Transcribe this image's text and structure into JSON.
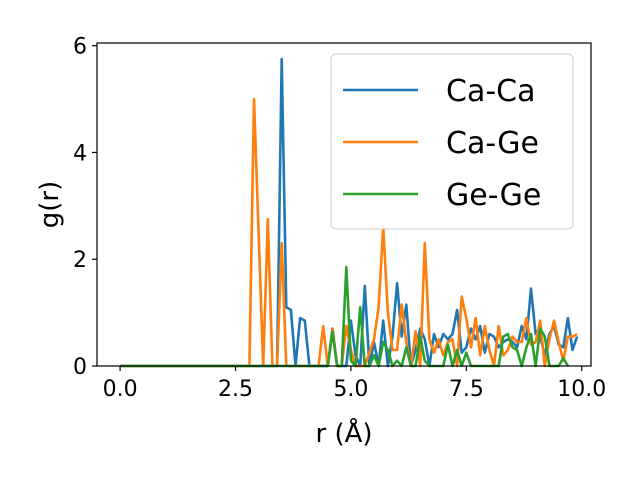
{
  "chart_data": {
    "type": "line",
    "xlabel": "r (Å)",
    "ylabel": "g(r)",
    "xlim": [
      -0.5,
      10.2
    ],
    "ylim": [
      0,
      6.05
    ],
    "xticks": [
      0.0,
      2.5,
      5.0,
      7.5,
      10.0
    ],
    "xtick_labels": [
      "0.0",
      "2.5",
      "5.0",
      "7.5",
      "10.0"
    ],
    "yticks": [
      0,
      2,
      4,
      6
    ],
    "ytick_labels": [
      "0",
      "2",
      "4",
      "6"
    ],
    "grid": false,
    "legend_position": "top-right",
    "series": [
      {
        "name": "Ca-Ca",
        "color": "#1f77b4",
        "points": [
          [
            0.0,
            0
          ],
          [
            3.3,
            0
          ],
          [
            3.4,
            0
          ],
          [
            3.5,
            5.75
          ],
          [
            3.6,
            1.1
          ],
          [
            3.7,
            1.05
          ],
          [
            3.8,
            0
          ],
          [
            3.9,
            0.9
          ],
          [
            4.0,
            0.85
          ],
          [
            4.1,
            0
          ],
          [
            4.3,
            0
          ],
          [
            4.5,
            0
          ],
          [
            4.6,
            0.7
          ],
          [
            4.7,
            0
          ],
          [
            4.9,
            0
          ],
          [
            5.0,
            0.85
          ],
          [
            5.1,
            0.2
          ],
          [
            5.2,
            0
          ],
          [
            5.3,
            1.5
          ],
          [
            5.4,
            0
          ],
          [
            5.5,
            0.45
          ],
          [
            5.6,
            0
          ],
          [
            5.7,
            0.85
          ],
          [
            5.8,
            0
          ],
          [
            5.9,
            0.55
          ],
          [
            6.0,
            1.55
          ],
          [
            6.1,
            0.55
          ],
          [
            6.2,
            1.15
          ],
          [
            6.3,
            0
          ],
          [
            6.4,
            0.3
          ],
          [
            6.5,
            0.7
          ],
          [
            6.6,
            0.5
          ],
          [
            6.7,
            0
          ],
          [
            6.8,
            0.6
          ],
          [
            6.9,
            0.35
          ],
          [
            7.0,
            0.6
          ],
          [
            7.1,
            0.5
          ],
          [
            7.2,
            0.6
          ],
          [
            7.3,
            1.05
          ],
          [
            7.4,
            0.25
          ],
          [
            7.5,
            0.35
          ],
          [
            7.6,
            0.7
          ],
          [
            7.7,
            0.5
          ],
          [
            7.8,
            0.75
          ],
          [
            7.9,
            0.25
          ],
          [
            8.0,
            0.6
          ],
          [
            8.1,
            0.55
          ],
          [
            8.2,
            0.35
          ],
          [
            8.3,
            0.45
          ],
          [
            8.4,
            0.5
          ],
          [
            8.5,
            0.45
          ],
          [
            8.6,
            0.35
          ],
          [
            8.7,
            0.75
          ],
          [
            8.8,
            0.5
          ],
          [
            8.9,
            1.45
          ],
          [
            9.0,
            0.6
          ],
          [
            9.1,
            0.55
          ],
          [
            9.2,
            0.2
          ],
          [
            9.3,
            0.6
          ],
          [
            9.4,
            0.75
          ],
          [
            9.5,
            0.4
          ],
          [
            9.6,
            0.35
          ],
          [
            9.7,
            0.9
          ],
          [
            9.8,
            0.3
          ],
          [
            9.9,
            0.55
          ]
        ]
      },
      {
        "name": "Ca-Ge",
        "color": "#ff7f0e",
        "points": [
          [
            0.0,
            0
          ],
          [
            2.8,
            0
          ],
          [
            2.9,
            5.0
          ],
          [
            3.0,
            2.5
          ],
          [
            3.1,
            0
          ],
          [
            3.2,
            2.75
          ],
          [
            3.3,
            0
          ],
          [
            3.4,
            0
          ],
          [
            3.5,
            2.3
          ],
          [
            3.6,
            0
          ],
          [
            4.3,
            0
          ],
          [
            4.4,
            0.75
          ],
          [
            4.5,
            0
          ],
          [
            4.6,
            0.7
          ],
          [
            4.7,
            0
          ],
          [
            4.8,
            0
          ],
          [
            4.9,
            0.75
          ],
          [
            5.0,
            0.3
          ],
          [
            5.1,
            0
          ],
          [
            5.2,
            0
          ],
          [
            5.3,
            0
          ],
          [
            5.4,
            0.25
          ],
          [
            5.5,
            0.5
          ],
          [
            5.6,
            1.1
          ],
          [
            5.7,
            2.6
          ],
          [
            5.8,
            1.0
          ],
          [
            5.9,
            0.3
          ],
          [
            6.0,
            0.3
          ],
          [
            6.1,
            1.15
          ],
          [
            6.2,
            0.45
          ],
          [
            6.3,
            0
          ],
          [
            6.4,
            0.65
          ],
          [
            6.5,
            0
          ],
          [
            6.6,
            2.3
          ],
          [
            6.7,
            0.5
          ],
          [
            6.8,
            0.25
          ],
          [
            6.9,
            0.5
          ],
          [
            7.0,
            0.2
          ],
          [
            7.1,
            0.45
          ],
          [
            7.2,
            0.5
          ],
          [
            7.3,
            0
          ],
          [
            7.4,
            1.3
          ],
          [
            7.5,
            0.9
          ],
          [
            7.6,
            0.35
          ],
          [
            7.7,
            0.9
          ],
          [
            7.8,
            0.2
          ],
          [
            7.9,
            0.75
          ],
          [
            8.0,
            0.3
          ],
          [
            8.1,
            0
          ],
          [
            8.2,
            0.75
          ],
          [
            8.3,
            0.2
          ],
          [
            8.4,
            0.3
          ],
          [
            8.5,
            0.55
          ],
          [
            8.6,
            0.45
          ],
          [
            8.7,
            0.45
          ],
          [
            8.8,
            0.9
          ],
          [
            8.9,
            0.4
          ],
          [
            9.0,
            0.45
          ],
          [
            9.1,
            0.85
          ],
          [
            9.2,
            0
          ],
          [
            9.3,
            0.5
          ],
          [
            9.4,
            0.85
          ],
          [
            9.5,
            0.45
          ],
          [
            9.6,
            0.1
          ],
          [
            9.7,
            0.55
          ],
          [
            9.8,
            0.55
          ],
          [
            9.9,
            0.6
          ]
        ]
      },
      {
        "name": "Ge-Ge",
        "color": "#2ca02c",
        "points": [
          [
            0.0,
            0
          ],
          [
            4.5,
            0
          ],
          [
            4.6,
            0.65
          ],
          [
            4.7,
            0
          ],
          [
            4.8,
            0
          ],
          [
            4.9,
            1.85
          ],
          [
            5.0,
            0.1
          ],
          [
            5.1,
            0
          ],
          [
            5.2,
            1.1
          ],
          [
            5.3,
            0
          ],
          [
            5.4,
            0
          ],
          [
            5.5,
            0.2
          ],
          [
            5.6,
            0
          ],
          [
            5.7,
            0.45
          ],
          [
            5.8,
            0.3
          ],
          [
            5.9,
            0
          ],
          [
            6.0,
            0.1
          ],
          [
            6.1,
            0
          ],
          [
            6.2,
            0.35
          ],
          [
            6.3,
            0
          ],
          [
            6.4,
            0
          ],
          [
            6.5,
            0.55
          ],
          [
            6.6,
            0.1
          ],
          [
            6.7,
            0
          ],
          [
            7.0,
            0
          ],
          [
            7.1,
            0.4
          ],
          [
            7.2,
            0
          ],
          [
            7.3,
            0.3
          ],
          [
            7.4,
            0
          ],
          [
            7.5,
            0.25
          ],
          [
            7.6,
            0
          ],
          [
            8.2,
            0
          ],
          [
            8.3,
            0.55
          ],
          [
            8.4,
            0.6
          ],
          [
            8.5,
            0.35
          ],
          [
            8.6,
            0.3
          ],
          [
            8.7,
            0
          ],
          [
            8.8,
            0.35
          ],
          [
            8.9,
            0.6
          ],
          [
            9.0,
            0
          ],
          [
            9.1,
            0.7
          ],
          [
            9.2,
            0.55
          ],
          [
            9.3,
            0
          ],
          [
            9.5,
            0
          ],
          [
            9.6,
            0.15
          ],
          [
            9.7,
            0
          ]
        ]
      }
    ]
  }
}
